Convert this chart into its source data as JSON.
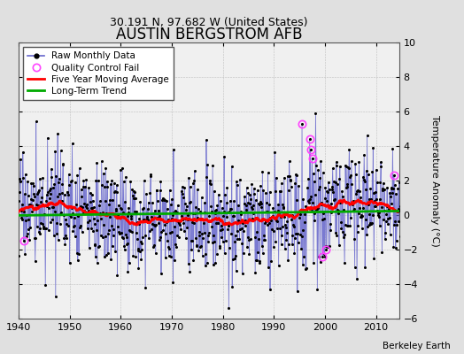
{
  "title": "AUSTIN BERGSTROM AFB",
  "subtitle": "30.191 N, 97.682 W (United States)",
  "ylabel": "Temperature Anomaly (°C)",
  "watermark": "Berkeley Earth",
  "start_year": 1940,
  "end_year": 2015,
  "ylim": [
    -6,
    10
  ],
  "yticks": [
    -6,
    -4,
    -2,
    0,
    2,
    4,
    6,
    8,
    10
  ],
  "xticks": [
    1940,
    1950,
    1960,
    1970,
    1980,
    1990,
    2000,
    2010
  ],
  "bg_color": "#e0e0e0",
  "plot_bg_color": "#f0f0f0",
  "raw_color": "#6666cc",
  "raw_dot_color": "#000000",
  "qc_fail_color": "#ff44ff",
  "moving_avg_color": "#ff0000",
  "trend_color": "#00aa00",
  "title_fontsize": 12,
  "subtitle_fontsize": 9,
  "axis_fontsize": 8,
  "tick_fontsize": 8,
  "legend_fontsize": 7.5
}
